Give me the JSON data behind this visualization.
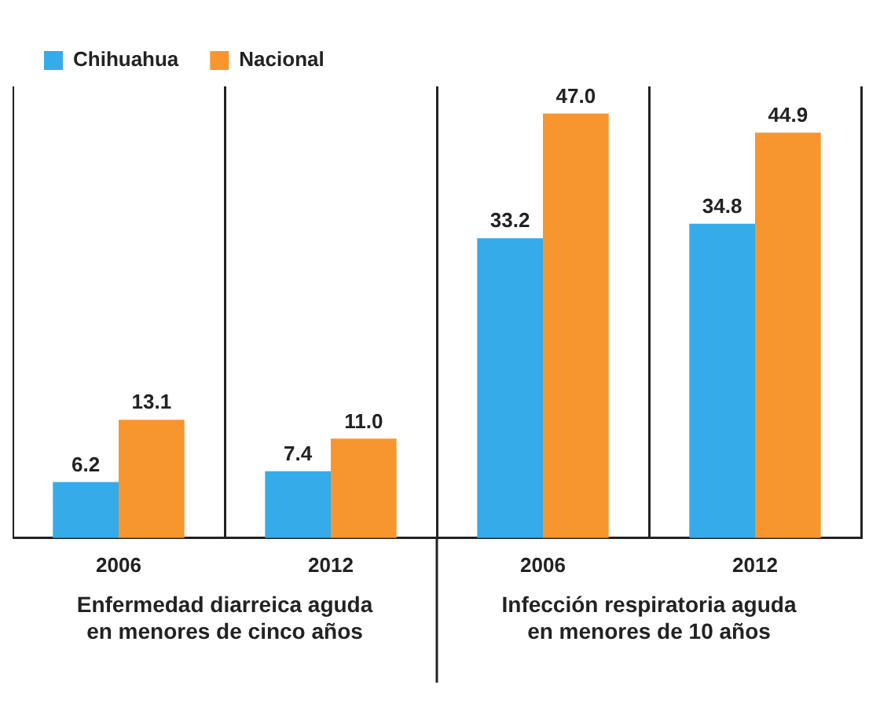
{
  "chart_data": {
    "type": "bar",
    "categories": [
      "2006",
      "2012",
      "2006",
      "2012"
    ],
    "series": [
      {
        "name": "Chihuahua",
        "color": "#35abe9",
        "values": [
          6.2,
          7.4,
          33.2,
          34.8
        ],
        "value_labels": [
          "6.2",
          "7.4",
          "33.2",
          "34.8"
        ]
      },
      {
        "name": "Nacional",
        "color": "#f7962e",
        "values": [
          13.1,
          11.0,
          47.0,
          44.9
        ],
        "value_labels": [
          "13.1",
          "11.0",
          "47.0",
          "44.9"
        ]
      }
    ],
    "legend": "top left",
    "grid": "x",
    "annotations": [
      "Enfermedad diarreica aguda en menores de cinco años",
      "Infección respiratoria aguda en menores de 10 años"
    ]
  }
}
